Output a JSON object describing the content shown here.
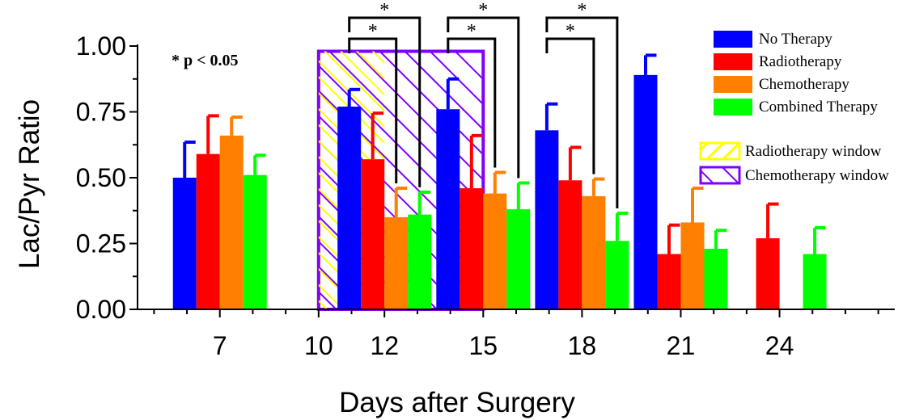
{
  "chart_data": {
    "type": "bar",
    "title": "",
    "xlabel": "Days after Surgery",
    "ylabel": "Lac/Pyr Ratio",
    "ylim": [
      0,
      1
    ],
    "yticks": [
      "0.00",
      "0.25",
      "0.50",
      "0.75",
      "1.00"
    ],
    "x_ticks": [
      7,
      10,
      12,
      15,
      18,
      21,
      24
    ],
    "x_tick_labels": [
      "7",
      "10",
      "12",
      "15",
      "18",
      "21",
      "24"
    ],
    "x_range": [
      4.5,
      27.5
    ],
    "groups": [
      {
        "day": 7,
        "values": [
          0.5,
          0.59,
          0.66,
          0.51
        ],
        "errors": [
          0.135,
          0.145,
          0.07,
          0.075
        ]
      },
      {
        "day": 12,
        "values": [
          0.77,
          0.57,
          0.35,
          0.36
        ],
        "errors": [
          0.065,
          0.175,
          0.11,
          0.085
        ]
      },
      {
        "day": 15,
        "values": [
          0.76,
          0.46,
          0.44,
          0.38
        ],
        "errors": [
          0.115,
          0.2,
          0.08,
          0.1
        ]
      },
      {
        "day": 18,
        "values": [
          0.68,
          0.49,
          0.43,
          0.26
        ],
        "errors": [
          0.1,
          0.125,
          0.065,
          0.105
        ]
      },
      {
        "day": 21,
        "values": [
          0.89,
          0.21,
          0.33,
          0.23
        ],
        "errors": [
          0.075,
          0.11,
          0.13,
          0.07
        ]
      },
      {
        "day": 24,
        "values": [
          null,
          0.27,
          null,
          0.21
        ],
        "errors": [
          null,
          0.13,
          null,
          0.1
        ]
      }
    ],
    "series": [
      {
        "name": "No Therapy",
        "color": "#0000ff"
      },
      {
        "name": "Radiotherapy",
        "color": "#ff0000"
      },
      {
        "name": "Chemotherapy",
        "color": "#ff7f00"
      },
      {
        "name": "Combined Therapy",
        "color": "#00ff00"
      }
    ],
    "windows": [
      {
        "name": "Radiotherapy window",
        "start_day": 10,
        "end_day": 12,
        "top": 0.98,
        "color": "#ffff00"
      },
      {
        "name": "Chemotherapy window",
        "start_day": 10,
        "end_day": 15,
        "top": 0.98,
        "color": "#8000ff"
      }
    ],
    "significance": [
      {
        "day": 12,
        "pairs": [
          [
            0,
            2
          ],
          [
            0,
            3
          ]
        ]
      },
      {
        "day": 15,
        "pairs": [
          [
            0,
            2
          ],
          [
            0,
            3
          ]
        ]
      },
      {
        "day": 18,
        "pairs": [
          [
            0,
            2
          ],
          [
            0,
            3
          ]
        ]
      }
    ],
    "significance_symbol": "*",
    "annotation": "* p < 0.05",
    "legend_position": "top-right",
    "grid": false
  }
}
